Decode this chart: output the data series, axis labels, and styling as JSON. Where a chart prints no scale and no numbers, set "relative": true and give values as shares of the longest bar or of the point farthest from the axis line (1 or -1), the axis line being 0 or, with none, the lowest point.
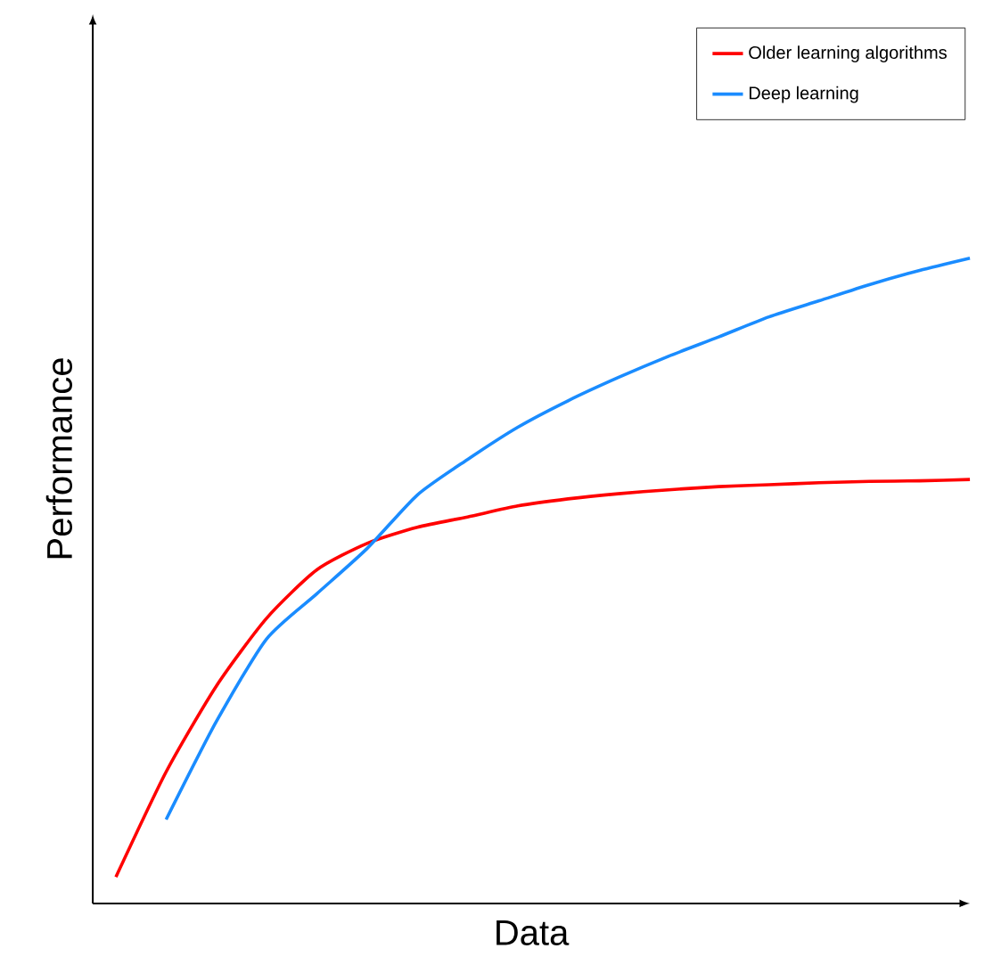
{
  "chart_data": {
    "type": "line",
    "relative": true,
    "xlabel": "Data",
    "ylabel": "Performance",
    "categories": [
      null,
      null,
      null,
      null,
      null,
      null,
      null,
      null,
      null,
      null,
      null,
      null,
      null,
      null,
      null,
      null,
      null,
      null
    ],
    "series": [
      {
        "name": "Older learning algorithms",
        "color": "#ff0000",
        "values": [
          0.041,
          0.204,
          0.337,
          0.442,
          0.517,
          0.558,
          0.583,
          0.599,
          0.616,
          0.627,
          0.635,
          0.641,
          0.646,
          0.649,
          0.652,
          0.654,
          0.655,
          0.657
        ]
      },
      {
        "name": "Deep learning",
        "color": "#1a8cff",
        "values": [
          null,
          0.13,
          0.282,
          0.41,
          0.48,
          0.55,
          0.633,
          0.688,
          0.738,
          0.779,
          0.815,
          0.848,
          0.878,
          0.909,
          0.934,
          0.959,
          0.981,
          1.0
        ]
      }
    ],
    "legend": "top right",
    "marker": "none",
    "line_style": "solid"
  }
}
